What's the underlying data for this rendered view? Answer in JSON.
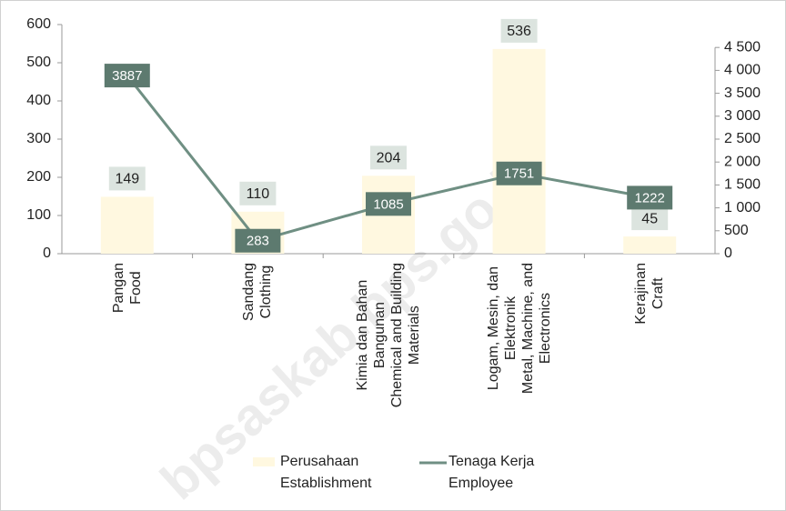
{
  "chart_data": {
    "type": "bar-line",
    "categories": [
      "Pangan\nFood",
      "Sandang\nClothing",
      "Kimia dan Bahan\nBangunan\nChemical and Building\nMaterials",
      "Logam, Mesin, dan\nElektronik\nMetal, Machine, and\nElectronics",
      "Kerajinan\nCraft"
    ],
    "series": [
      {
        "name": "Perusahaan\nEstablishment",
        "type": "bar",
        "color": "#fff8e0",
        "values": [
          149,
          110,
          204,
          536,
          45
        ]
      },
      {
        "name": "Tenaga  Kerja\nEmployee",
        "type": "line",
        "axis": "y2",
        "color": "#6f8f83",
        "values": [
          3887,
          283,
          1085,
          1751,
          1222
        ]
      }
    ],
    "ylim": [
      0,
      600
    ],
    "yticks": [
      0,
      100,
      200,
      300,
      400,
      500,
      600
    ],
    "y2lim": [
      0,
      5000
    ],
    "y2ticks": [
      0,
      500,
      {
        "value": 1000,
        "label": "1 000"
      },
      {
        "value": 1500,
        "label": "1 500"
      },
      {
        "value": 2000,
        "label": "2 000"
      },
      {
        "value": 2500,
        "label": "2 500"
      },
      {
        "value": 3000,
        "label": "3 000"
      },
      {
        "value": 3500,
        "label": "3 500"
      },
      {
        "value": 4000,
        "label": "4 000"
      },
      {
        "value": 4500,
        "label": "4 500"
      }
    ],
    "legend": "bottom",
    "watermark": "bpsaskab.bps.go.id"
  }
}
